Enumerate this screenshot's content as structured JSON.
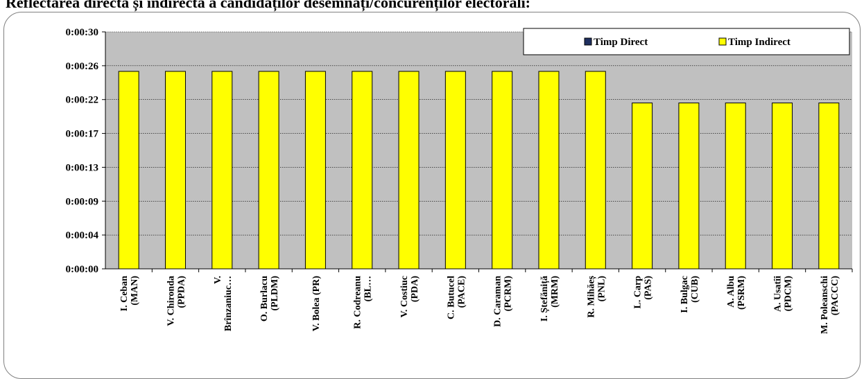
{
  "chart_data": {
    "type": "bar",
    "title": "Reflectarea directă și indirectă a candidaților desemnați/concurenților electorali:",
    "y_ticks": [
      "0:00:00",
      "0:00:04",
      "0:00:09",
      "0:00:13",
      "0:00:17",
      "0:00:22",
      "0:00:26",
      "0:00:30"
    ],
    "ylim": [
      0,
      30
    ],
    "categories": [
      [
        "I. Ceban",
        "(MAN)"
      ],
      [
        "V. Chironda",
        "(PPDA)"
      ],
      [
        "V.",
        "Brînzaniuc…"
      ],
      [
        "O. Burlacu",
        "(PLDM)"
      ],
      [
        "V. Bolea (PR)"
      ],
      [
        "R. Codreanu",
        "(BL…"
      ],
      [
        "V. Costiuc",
        "(PDA)"
      ],
      [
        "C. Butucel",
        "(PACE)"
      ],
      [
        "D. Caraman",
        "(PCRM)"
      ],
      [
        "I. Ștefăniță",
        "(MRM)"
      ],
      [
        "R. Mihăeș",
        "(PNL)"
      ],
      [
        "L. Carp",
        "(PAS)"
      ],
      [
        "I. Bulgac",
        "(CUB)"
      ],
      [
        "A. Albu",
        "(PSRM)"
      ],
      [
        "A. Usatîi",
        "(PDCM)"
      ],
      [
        "M. Poleanschi",
        "(PACCC)"
      ]
    ],
    "series": [
      {
        "name": "Timp Direct",
        "color": "#1f2f5f",
        "values": [
          0,
          0,
          0,
          0,
          0,
          0,
          0,
          0,
          0,
          0,
          0,
          0,
          0,
          0,
          0,
          0
        ]
      },
      {
        "name": "Timp Indirect",
        "color": "#ffff00",
        "values": [
          25,
          25,
          25,
          25,
          25,
          25,
          25,
          25,
          25,
          25,
          25,
          21,
          21,
          21,
          21,
          21
        ]
      }
    ],
    "grid": true,
    "legend_position": "top-right",
    "plot_background": "#c0c0c0"
  }
}
